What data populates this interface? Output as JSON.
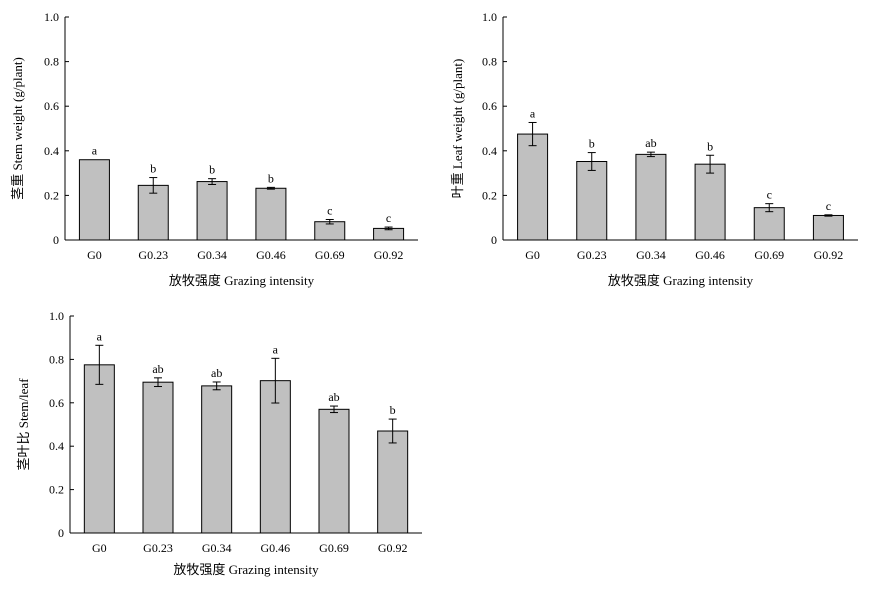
{
  "chart_data": [
    {
      "type": "bar",
      "categories": [
        "G0",
        "G0.23",
        "G0.34",
        "G0.46",
        "G0.69",
        "G0.92"
      ],
      "values": [
        0.36,
        0.245,
        0.262,
        0.232,
        0.082,
        0.052
      ],
      "errors": [
        0.0,
        0.035,
        0.013,
        0.004,
        0.01,
        0.006
      ],
      "letters": [
        "a",
        "b",
        "b",
        "b",
        "c",
        "c"
      ],
      "xlabel": "放牧强度 Grazing intensity",
      "ylabel": "茎重 Stem weight (g/plant)",
      "ylim": [
        0,
        1.0
      ],
      "yticks": [
        "0",
        "0.2",
        "0.4",
        "0.6",
        "0.8",
        "1.0"
      ],
      "bar_color": "#c0c0c0"
    },
    {
      "type": "bar",
      "categories": [
        "G0",
        "G0.23",
        "G0.34",
        "G0.46",
        "G0.69",
        "G0.92"
      ],
      "values": [
        0.475,
        0.352,
        0.384,
        0.34,
        0.145,
        0.11
      ],
      "errors": [
        0.052,
        0.04,
        0.01,
        0.04,
        0.018,
        0.003
      ],
      "letters": [
        "a",
        "b",
        "ab",
        "b",
        "c",
        "c"
      ],
      "xlabel": "放牧强度 Grazing intensity",
      "ylabel": "叶重 Leaf weight (g/plant)",
      "ylim": [
        0,
        1.0
      ],
      "yticks": [
        "0",
        "0.2",
        "0.4",
        "0.6",
        "0.8",
        "1.0"
      ],
      "bar_color": "#c0c0c0"
    },
    {
      "type": "bar",
      "categories": [
        "G0",
        "G0.23",
        "G0.34",
        "G0.46",
        "G0.69",
        "G0.92"
      ],
      "values": [
        0.775,
        0.695,
        0.678,
        0.702,
        0.57,
        0.47
      ],
      "errors": [
        0.09,
        0.02,
        0.018,
        0.103,
        0.015,
        0.055
      ],
      "letters": [
        "a",
        "ab",
        "ab",
        "a",
        "ab",
        "b"
      ],
      "xlabel": "放牧强度 Grazing intensity",
      "ylabel": "茎叶比 Stem/leaf",
      "ylim": [
        0,
        1.0
      ],
      "yticks": [
        "0",
        "0.2",
        "0.4",
        "0.6",
        "0.8",
        "1.0"
      ],
      "bar_color": "#c0c0c0"
    }
  ]
}
